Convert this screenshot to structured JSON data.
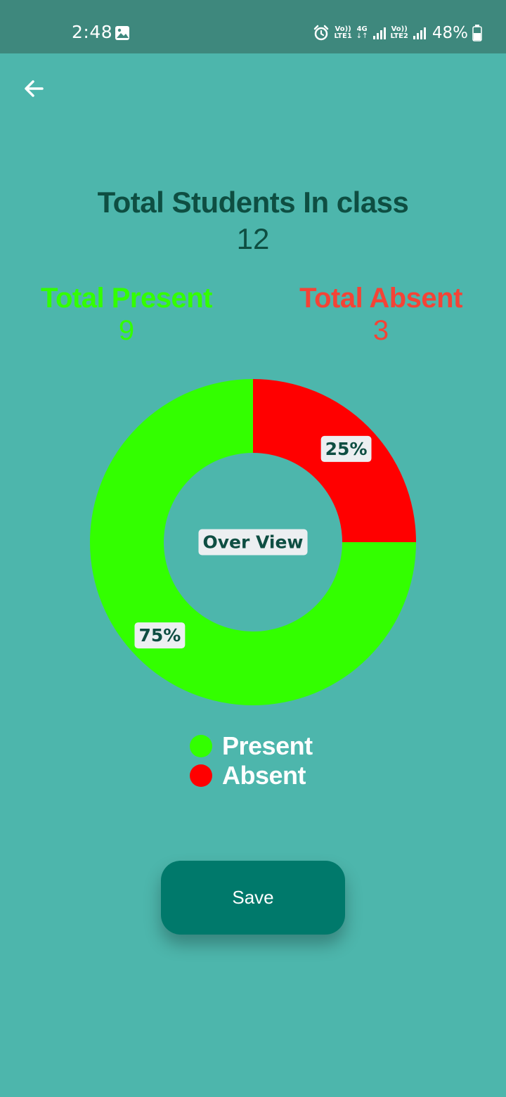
{
  "status_bar": {
    "time": "2:48",
    "network1_top": "Vo))",
    "network1_bottom": "LTE1",
    "network_type": "4G",
    "network2_top": "Vo))",
    "network2_bottom": "LTE2",
    "battery": "48%",
    "icons": [
      "gallery-icon",
      "alarm-icon",
      "signal-icon",
      "signal-icon",
      "battery-icon"
    ]
  },
  "header": {
    "back_icon": "arrow-back-icon"
  },
  "summary": {
    "title": "Total Students In class",
    "total": "12",
    "present_label": "Total Present",
    "present_value": "9",
    "absent_label": "Total Absent",
    "absent_value": "3"
  },
  "colors": {
    "background": "#4DB6AC",
    "status_bar": "#3E887D",
    "title": "#0E4E42",
    "present": "#33FF00",
    "absent": "#FF0000",
    "absent_text": "#F44336",
    "button": "#00796B"
  },
  "chart_data": {
    "type": "pie",
    "center_label": "Over View",
    "categories": [
      "Present",
      "Absent"
    ],
    "values": [
      75,
      25
    ],
    "value_labels": [
      "75%",
      "25%"
    ],
    "colors": [
      "#33FF00",
      "#FF0000"
    ],
    "legend_position": "bottom"
  },
  "legend": {
    "items": [
      {
        "label": "Present",
        "color": "#33FF00"
      },
      {
        "label": "Absent",
        "color": "#FF0000"
      }
    ]
  },
  "actions": {
    "save_label": "Save"
  }
}
